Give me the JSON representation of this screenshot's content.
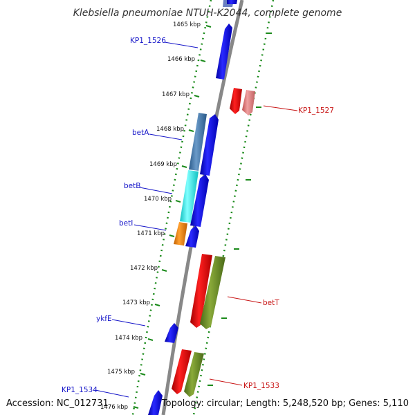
{
  "title": "Klebsiella pneumoniae NTUH-K2044, complete genome",
  "footer": {
    "accession": "Accession: NC_012731",
    "info": "Topology: circular; Length: 5,248,520 bp; Genes: 5,110"
  },
  "ticks": [
    {
      "label": "1465 kbp"
    },
    {
      "label": "1466 kbp"
    },
    {
      "label": "1467 kbp"
    },
    {
      "label": "1468 kbp"
    },
    {
      "label": "1469 kbp"
    },
    {
      "label": "1470 kbp"
    },
    {
      "label": "1471 kbp"
    },
    {
      "label": "1472 kbp"
    },
    {
      "label": "1473 kbp"
    },
    {
      "label": "1474 kbp"
    },
    {
      "label": "1475 kbp"
    },
    {
      "label": "1476 kbp"
    }
  ],
  "gene_labels": [
    {
      "name": "KP1_1526",
      "strand": "forward"
    },
    {
      "name": "KP1_1527",
      "strand": "reverse"
    },
    {
      "name": "betA",
      "strand": "forward"
    },
    {
      "name": "betB",
      "strand": "forward"
    },
    {
      "name": "betI",
      "strand": "forward"
    },
    {
      "name": "betT",
      "strand": "reverse"
    },
    {
      "name": "ykfE",
      "strand": "forward"
    },
    {
      "name": "KP1_1533",
      "strand": "reverse"
    },
    {
      "name": "KP1_1534",
      "strand": "forward"
    }
  ],
  "colors": {
    "forward_cds": "#1010e0",
    "reverse_cds": "#e81010",
    "betA": "#4a7fb0",
    "betB": "#20f0f0",
    "betI": "#f08a10",
    "betT_rna": "#6b8a2a",
    "ruler": "#1a8a1a",
    "backbone": "#7a7a7a"
  }
}
